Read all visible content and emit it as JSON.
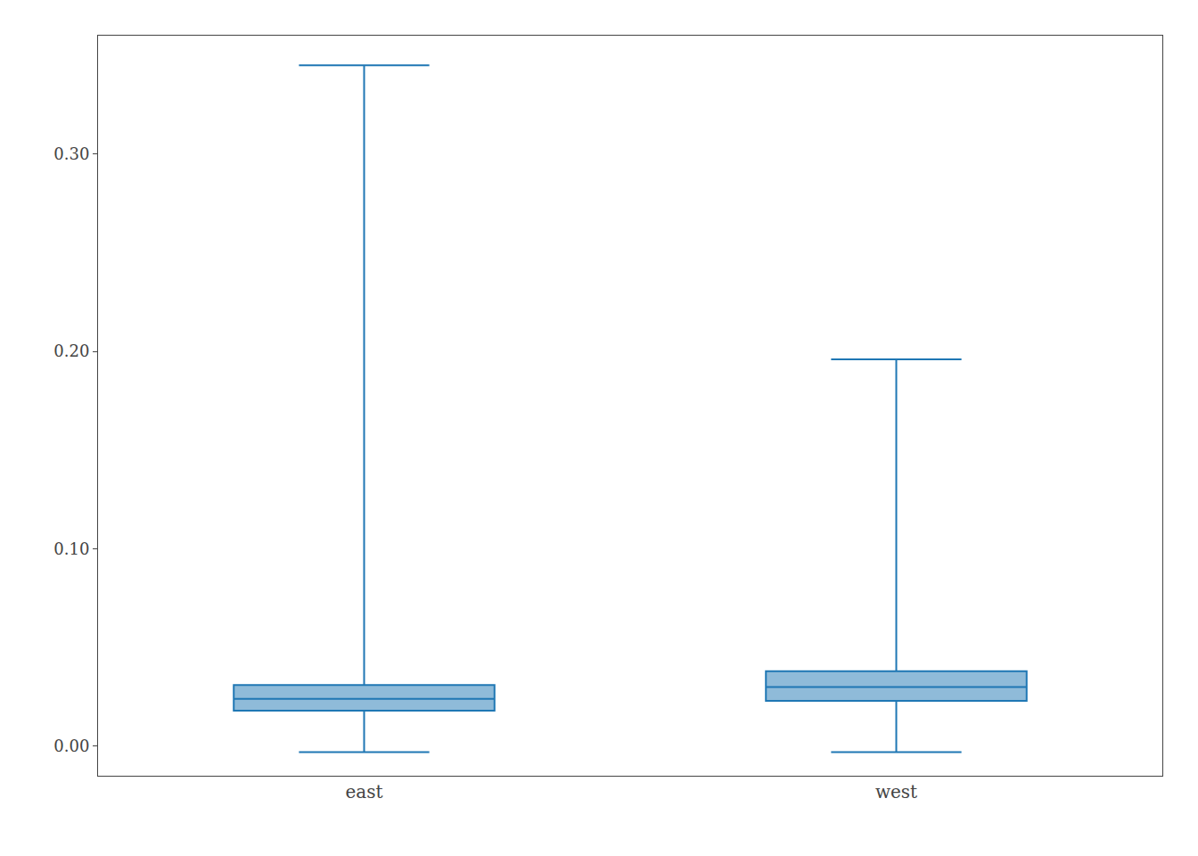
{
  "chart_data": {
    "type": "box",
    "categories": [
      "east",
      "west"
    ],
    "whisker_low": [
      -0.003,
      -0.003
    ],
    "q1": [
      0.018,
      0.023
    ],
    "median": [
      0.024,
      0.03
    ],
    "q3": [
      0.031,
      0.038
    ],
    "whisker_high": [
      0.345,
      0.196
    ],
    "ylim": [
      -0.015,
      0.36
    ],
    "yticks": [
      {
        "value": 0.0,
        "label": "0.00"
      },
      {
        "value": 0.1,
        "label": "0.10"
      },
      {
        "value": 0.2,
        "label": "0.20"
      },
      {
        "value": 0.3,
        "label": "0.30"
      }
    ],
    "grid": false
  }
}
